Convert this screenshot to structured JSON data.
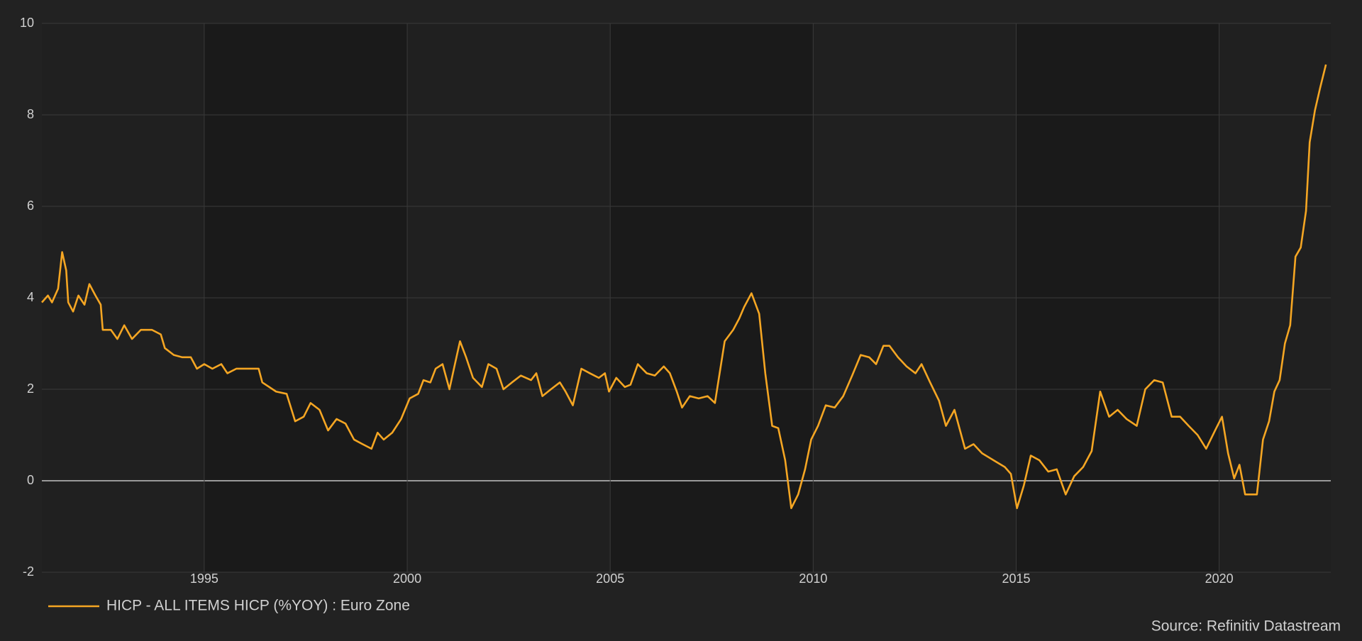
{
  "chart_data": {
    "type": "line",
    "source": "Source: Refinitiv Datastream",
    "x": [
      1991.0,
      1991.15,
      1991.25,
      1991.4,
      1991.5,
      1991.6,
      1991.65,
      1991.77,
      1991.9,
      1992.05,
      1992.17,
      1992.32,
      1992.45,
      1992.5,
      1992.7,
      1992.86,
      1993.03,
      1993.22,
      1993.44,
      1993.71,
      1993.93,
      1994.03,
      1994.25,
      1994.46,
      1994.67,
      1994.82,
      1995.0,
      1995.2,
      1995.42,
      1995.57,
      1995.79,
      1996.17,
      1996.34,
      1996.43,
      1996.77,
      1997.03,
      1997.24,
      1997.45,
      1997.62,
      1997.84,
      1998.05,
      1998.26,
      1998.48,
      1998.69,
      1998.9,
      1999.12,
      1999.27,
      1999.42,
      1999.63,
      1999.85,
      2000.06,
      2000.27,
      2000.4,
      2000.57,
      2000.7,
      2000.87,
      2001.04,
      2001.15,
      2001.3,
      2001.45,
      2001.62,
      2001.84,
      2002.0,
      2002.2,
      2002.37,
      2002.58,
      2002.8,
      2003.05,
      2003.18,
      2003.33,
      2003.54,
      2003.76,
      2003.9,
      2004.08,
      2004.29,
      2004.5,
      2004.72,
      2004.87,
      2004.97,
      2005.15,
      2005.36,
      2005.5,
      2005.68,
      2005.9,
      2006.1,
      2006.32,
      2006.47,
      2006.64,
      2006.77,
      2006.96,
      2007.18,
      2007.4,
      2007.58,
      2007.82,
      2008.03,
      2008.18,
      2008.3,
      2008.48,
      2008.67,
      2008.82,
      2008.99,
      2009.14,
      2009.31,
      2009.46,
      2009.63,
      2009.8,
      2009.95,
      2010.12,
      2010.31,
      2010.53,
      2010.74,
      2010.96,
      2011.17,
      2011.38,
      2011.55,
      2011.73,
      2011.88,
      2012.09,
      2012.3,
      2012.52,
      2012.67,
      2012.88,
      2013.1,
      2013.27,
      2013.48,
      2013.74,
      2013.95,
      2014.16,
      2014.44,
      2014.72,
      2014.87,
      2015.02,
      2015.19,
      2015.36,
      2015.57,
      2015.79,
      2016.0,
      2016.22,
      2016.43,
      2016.65,
      2016.86,
      2017.07,
      2017.29,
      2017.5,
      2017.72,
      2017.97,
      2018.18,
      2018.4,
      2018.61,
      2018.83,
      2019.04,
      2019.25,
      2019.47,
      2019.68,
      2019.9,
      2020.07,
      2020.22,
      2020.37,
      2020.5,
      2020.64,
      2020.93,
      2021.08,
      2021.23,
      2021.36,
      2021.49,
      2021.62,
      2021.75,
      2021.88,
      2022.01,
      2022.14,
      2022.23,
      2022.36,
      2022.49,
      2022.63
    ],
    "series": [
      {
        "name": "HICP - ALL ITEMS HICP (%YOY) : Euro Zone",
        "color": "#f5a623",
        "values": [
          3.9,
          4.05,
          3.9,
          4.2,
          5.0,
          4.6,
          3.9,
          3.7,
          4.05,
          3.85,
          4.3,
          4.05,
          3.85,
          3.3,
          3.3,
          3.1,
          3.4,
          3.1,
          3.3,
          3.3,
          3.2,
          2.9,
          2.75,
          2.7,
          2.7,
          2.45,
          2.55,
          2.45,
          2.55,
          2.35,
          2.45,
          2.45,
          2.45,
          2.15,
          1.95,
          1.9,
          1.3,
          1.4,
          1.7,
          1.55,
          1.1,
          1.35,
          1.25,
          0.9,
          0.8,
          0.7,
          1.05,
          0.9,
          1.05,
          1.35,
          1.8,
          1.9,
          2.2,
          2.15,
          2.45,
          2.55,
          2.0,
          2.45,
          3.05,
          2.7,
          2.25,
          2.05,
          2.55,
          2.45,
          2.0,
          2.15,
          2.3,
          2.2,
          2.35,
          1.85,
          2.0,
          2.15,
          1.95,
          1.65,
          2.45,
          2.35,
          2.25,
          2.35,
          1.95,
          2.25,
          2.05,
          2.1,
          2.55,
          2.35,
          2.3,
          2.5,
          2.35,
          1.95,
          1.6,
          1.85,
          1.8,
          1.85,
          1.7,
          3.05,
          3.3,
          3.55,
          3.8,
          4.1,
          3.65,
          2.35,
          1.2,
          1.15,
          0.45,
          -0.6,
          -0.3,
          0.25,
          0.9,
          1.2,
          1.65,
          1.6,
          1.85,
          2.3,
          2.75,
          2.7,
          2.55,
          2.95,
          2.95,
          2.7,
          2.5,
          2.35,
          2.55,
          2.15,
          1.75,
          1.2,
          1.55,
          0.7,
          0.8,
          0.6,
          0.45,
          0.3,
          0.15,
          -0.6,
          -0.1,
          0.55,
          0.45,
          0.2,
          0.25,
          -0.3,
          0.1,
          0.3,
          0.65,
          1.95,
          1.4,
          1.55,
          1.35,
          1.2,
          2.0,
          2.2,
          2.15,
          1.4,
          1.4,
          1.2,
          1.0,
          0.7,
          1.1,
          1.4,
          0.6,
          0.05,
          0.35,
          -0.3,
          -0.3,
          0.9,
          1.3,
          1.95,
          2.2,
          3.0,
          3.4,
          4.9,
          5.1,
          5.9,
          7.4,
          8.1,
          8.6,
          9.1
        ]
      }
    ],
    "xlim": [
      1991,
      2022.75
    ],
    "xticks": [
      1995,
      2000,
      2005,
      2010,
      2015,
      2020
    ],
    "ylim": [
      -2,
      10
    ],
    "yticks": [
      -2,
      0,
      2,
      4,
      6,
      8,
      10
    ],
    "grid": true
  }
}
